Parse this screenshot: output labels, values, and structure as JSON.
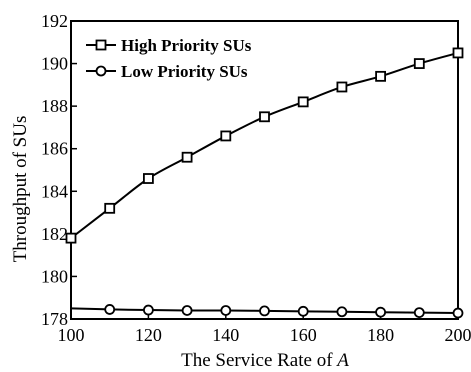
{
  "chart_data": {
    "type": "line",
    "xlabel_prefix": "The Service Rate of ",
    "xlabel_var": "A",
    "ylabel": "Throughput of SUs",
    "xlim": [
      100,
      200
    ],
    "ylim": [
      178,
      192
    ],
    "xticks": [
      100,
      120,
      140,
      160,
      180,
      200
    ],
    "yticks": [
      178,
      180,
      182,
      184,
      186,
      188,
      190,
      192
    ],
    "grid": false,
    "legend_position": "top-left",
    "series": [
      {
        "name": "High Priority SUs",
        "marker": "square",
        "x": [
          100,
          110,
          120,
          130,
          140,
          150,
          160,
          170,
          180,
          190,
          200
        ],
        "y": [
          181.8,
          183.2,
          184.6,
          185.6,
          186.6,
          187.5,
          188.2,
          188.9,
          189.4,
          190.0,
          190.5
        ]
      },
      {
        "name": "Low Priority SUs",
        "marker": "circle",
        "x": [
          100,
          110,
          120,
          130,
          140,
          150,
          160,
          170,
          180,
          190,
          200
        ],
        "y": [
          178.5,
          178.45,
          178.42,
          178.4,
          178.4,
          178.38,
          178.36,
          178.34,
          178.32,
          178.3,
          178.28
        ],
        "marker_x": [
          110,
          120,
          130,
          140,
          150,
          160,
          170,
          180,
          190,
          200
        ]
      }
    ]
  }
}
